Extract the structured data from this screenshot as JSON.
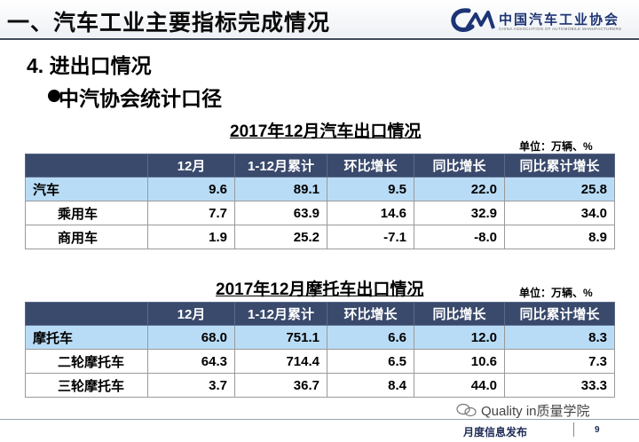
{
  "header": {
    "title": "一、汽车工业主要指标完成情况",
    "logo_text": "中国汽车工业协会",
    "logo_sub": "CHINA ASSOCIATION OF AUTOMOBILE MANUFACTURERS"
  },
  "section_title": "4. 进出口情况",
  "sub_title": "中汽协会统计口径",
  "car_table": {
    "title": "2017年12月汽车出口情况",
    "unit": "单位：万辆、%",
    "headers": [
      "",
      "12月",
      "1-12月累计",
      "环比增长",
      "同比增长",
      "同比累计增长"
    ],
    "rows": [
      [
        "汽车",
        "9.6",
        "89.1",
        "9.5",
        "22.0",
        "25.8"
      ],
      [
        "乘用车",
        "7.7",
        "63.9",
        "14.6",
        "32.9",
        "34.0"
      ],
      [
        "商用车",
        "1.9",
        "25.2",
        "-7.1",
        "-8.0",
        "8.9"
      ]
    ]
  },
  "moto_table": {
    "title": "2017年12月摩托车出口情况",
    "unit": "单位：万辆、%",
    "headers": [
      "",
      "12月",
      "1-12月累计",
      "环比增长",
      "同比增长",
      "同比累计增长"
    ],
    "rows": [
      [
        "摩托车",
        "68.0",
        "751.1",
        "6.6",
        "12.0",
        "8.3"
      ],
      [
        "二轮摩托车",
        "64.3",
        "714.4",
        "6.5",
        "10.6",
        "7.3"
      ],
      [
        "三轮摩托车",
        "3.7",
        "36.7",
        "8.4",
        "44.0",
        "33.3"
      ]
    ]
  },
  "watermark": "Quality in质量学院",
  "footer": {
    "text": "月度信息发布",
    "page": "9"
  },
  "colors": {
    "header_row": "#3a4a6d",
    "highlight_row": "#b9dcf6",
    "logo": "#1c3474"
  }
}
